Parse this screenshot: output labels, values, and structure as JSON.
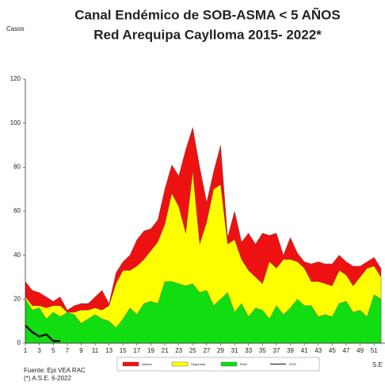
{
  "chart_data": {
    "type": "area",
    "title": "Canal Endémico de SOB-ASMA < 5 AÑOS",
    "subtitle": "Red Arequipa Caylloma 2015- 2022*",
    "y_label": "Casos",
    "x_label": "S.E",
    "notes": [
      "Fuente: Epi VEA RAC",
      "(*) A.S.E. 6-2022"
    ],
    "x": [
      1,
      2,
      3,
      4,
      5,
      6,
      7,
      8,
      9,
      10,
      11,
      12,
      13,
      14,
      15,
      16,
      17,
      18,
      19,
      20,
      21,
      22,
      23,
      24,
      25,
      26,
      27,
      28,
      29,
      30,
      31,
      32,
      33,
      34,
      35,
      36,
      37,
      38,
      39,
      40,
      41,
      42,
      43,
      44,
      45,
      46,
      47,
      48,
      49,
      50,
      51,
      52
    ],
    "xlim": [
      1,
      52
    ],
    "xticks": [
      1,
      3,
      5,
      7,
      9,
      11,
      13,
      15,
      17,
      19,
      21,
      23,
      25,
      27,
      29,
      31,
      33,
      35,
      37,
      39,
      41,
      43,
      45,
      47,
      49,
      51
    ],
    "ylim": [
      0,
      120
    ],
    "yticks": [
      0,
      20,
      40,
      60,
      80,
      100,
      120
    ],
    "series": [
      {
        "name": "Alarma",
        "color": "#ee1111",
        "values": [
          28,
          24,
          23,
          21,
          19,
          21,
          15,
          17,
          18,
          18,
          21,
          24,
          18,
          32,
          37,
          40,
          47,
          51,
          52,
          56,
          70,
          81,
          76,
          88,
          98,
          80,
          64,
          78,
          90,
          48,
          60,
          46,
          50,
          45,
          50,
          49,
          50,
          40,
          48,
          41,
          37,
          36,
          37,
          36,
          36,
          40,
          37,
          35,
          35,
          37,
          39,
          34
        ]
      },
      {
        "name": "Seguridad",
        "color": "#ffff00",
        "values": [
          21,
          17,
          17,
          16,
          17,
          17,
          14,
          14,
          15,
          15,
          16,
          15,
          17,
          27,
          33,
          33,
          35,
          38,
          42,
          46,
          54,
          68,
          62,
          50,
          78,
          45,
          55,
          70,
          72,
          45,
          47,
          38,
          33,
          30,
          27,
          37,
          34,
          38,
          38,
          37,
          34,
          28,
          28,
          27,
          26,
          33,
          31,
          26,
          30,
          34,
          35,
          30
        ]
      },
      {
        "name": "Éxito",
        "color": "#11dd11",
        "values": [
          20,
          15,
          16,
          11,
          14,
          12,
          14,
          13,
          9,
          11,
          13,
          11,
          10,
          7,
          11,
          16,
          13,
          18,
          19,
          18,
          28,
          28,
          27,
          26,
          27,
          23,
          24,
          17,
          20,
          23,
          14,
          18,
          12,
          16,
          15,
          11,
          17,
          13,
          16,
          20,
          17,
          17,
          12,
          13,
          12,
          18,
          19,
          14,
          15,
          12,
          22,
          20
        ]
      },
      {
        "name": "2022",
        "color": "#111111",
        "line": true,
        "values": [
          8,
          5,
          3,
          4,
          1,
          1,
          null,
          null,
          null,
          null,
          null,
          null,
          null,
          null,
          null,
          null,
          null,
          null,
          null,
          null,
          null,
          null,
          null,
          null,
          null,
          null,
          null,
          null,
          null,
          null,
          null,
          null,
          null,
          null,
          null,
          null,
          null,
          null,
          null,
          null,
          null,
          null,
          null,
          null,
          null,
          null,
          null,
          null,
          null,
          null,
          null,
          null
        ]
      }
    ]
  }
}
